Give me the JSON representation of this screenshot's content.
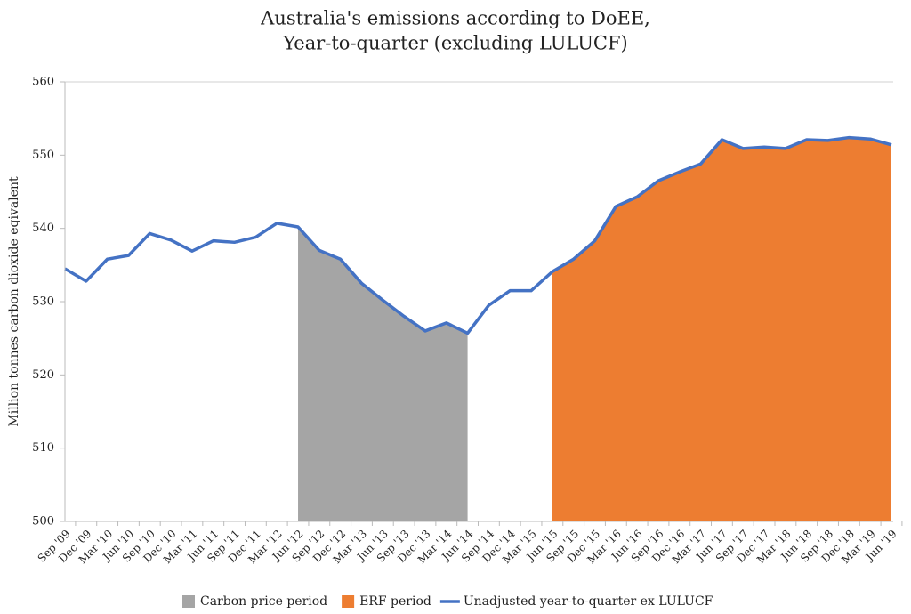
{
  "chart_data": {
    "type": "line_area",
    "title": [
      "Australia's emissions according to DoEE,",
      "Year-to-quarter (excluding LULUCF)"
    ],
    "y_label": "Million tonnes carbon dioxide eqivalent",
    "categories": [
      "Sep '09",
      "Dec '09",
      "Mar '10",
      "Jun '10",
      "Sep '10",
      "Dec '10",
      "Mar '11",
      "Jun '11",
      "Sep '11",
      "Dec '11",
      "Mar '12",
      "Jun '12",
      "Sep '12",
      "Dec '12",
      "Mar '13",
      "Jun '13",
      "Sep '13",
      "Dec '13",
      "Mar '14",
      "Jun '14",
      "Sep '14",
      "Dec '14",
      "Mar '15",
      "Jun '15",
      "Sep '15",
      "Dec '15",
      "Mar '16",
      "Jun '16",
      "Sep '16",
      "Dec '16",
      "Mar '17",
      "Jun '17",
      "Sep '17",
      "Dec '17",
      "Mar '18",
      "Jun '18",
      "Sep '18",
      "Dec '18",
      "Mar '19",
      "Jun '19"
    ],
    "series": [
      {
        "name": "Carbon price period",
        "kind": "area",
        "color": "#a5a5a5",
        "values": [
          null,
          null,
          null,
          null,
          null,
          null,
          null,
          null,
          null,
          null,
          null,
          540.2,
          537,
          535.8,
          532.5,
          530.2,
          528,
          526,
          527.1,
          525.7,
          null,
          null,
          null,
          null,
          null,
          null,
          null,
          null,
          null,
          null,
          null,
          null,
          null,
          null,
          null,
          null,
          null,
          null,
          null,
          null
        ]
      },
      {
        "name": "ERF period",
        "kind": "area",
        "color": "#ed7d31",
        "values": [
          null,
          null,
          null,
          null,
          null,
          null,
          null,
          null,
          null,
          null,
          null,
          null,
          null,
          null,
          null,
          null,
          null,
          null,
          null,
          null,
          null,
          null,
          null,
          534.1,
          535.8,
          538.3,
          543,
          544.3,
          546.5,
          547.7,
          548.8,
          552.1,
          550.9,
          551.1,
          550.9,
          552.1,
          552,
          552.4,
          552.2,
          551.4
        ]
      },
      {
        "name": "Unadjusted year-to-quarter ex LULUCF",
        "kind": "line",
        "color": "#4472c4",
        "values": [
          534.5,
          532.8,
          535.8,
          536.3,
          539.3,
          538.4,
          536.9,
          538.3,
          538.1,
          538.8,
          540.7,
          540.2,
          537,
          535.8,
          532.5,
          530.2,
          528,
          526,
          527.1,
          525.7,
          529.5,
          531.5,
          531.5,
          534.1,
          535.8,
          538.3,
          543,
          544.3,
          546.5,
          547.7,
          548.8,
          552.1,
          550.9,
          551.1,
          550.9,
          552.1,
          552,
          552.4,
          552.2,
          551.4
        ]
      }
    ],
    "ylim": [
      500,
      560
    ],
    "yticks": [
      500,
      510,
      520,
      530,
      540,
      550,
      560
    ],
    "grid": false,
    "legend": "bottom"
  }
}
